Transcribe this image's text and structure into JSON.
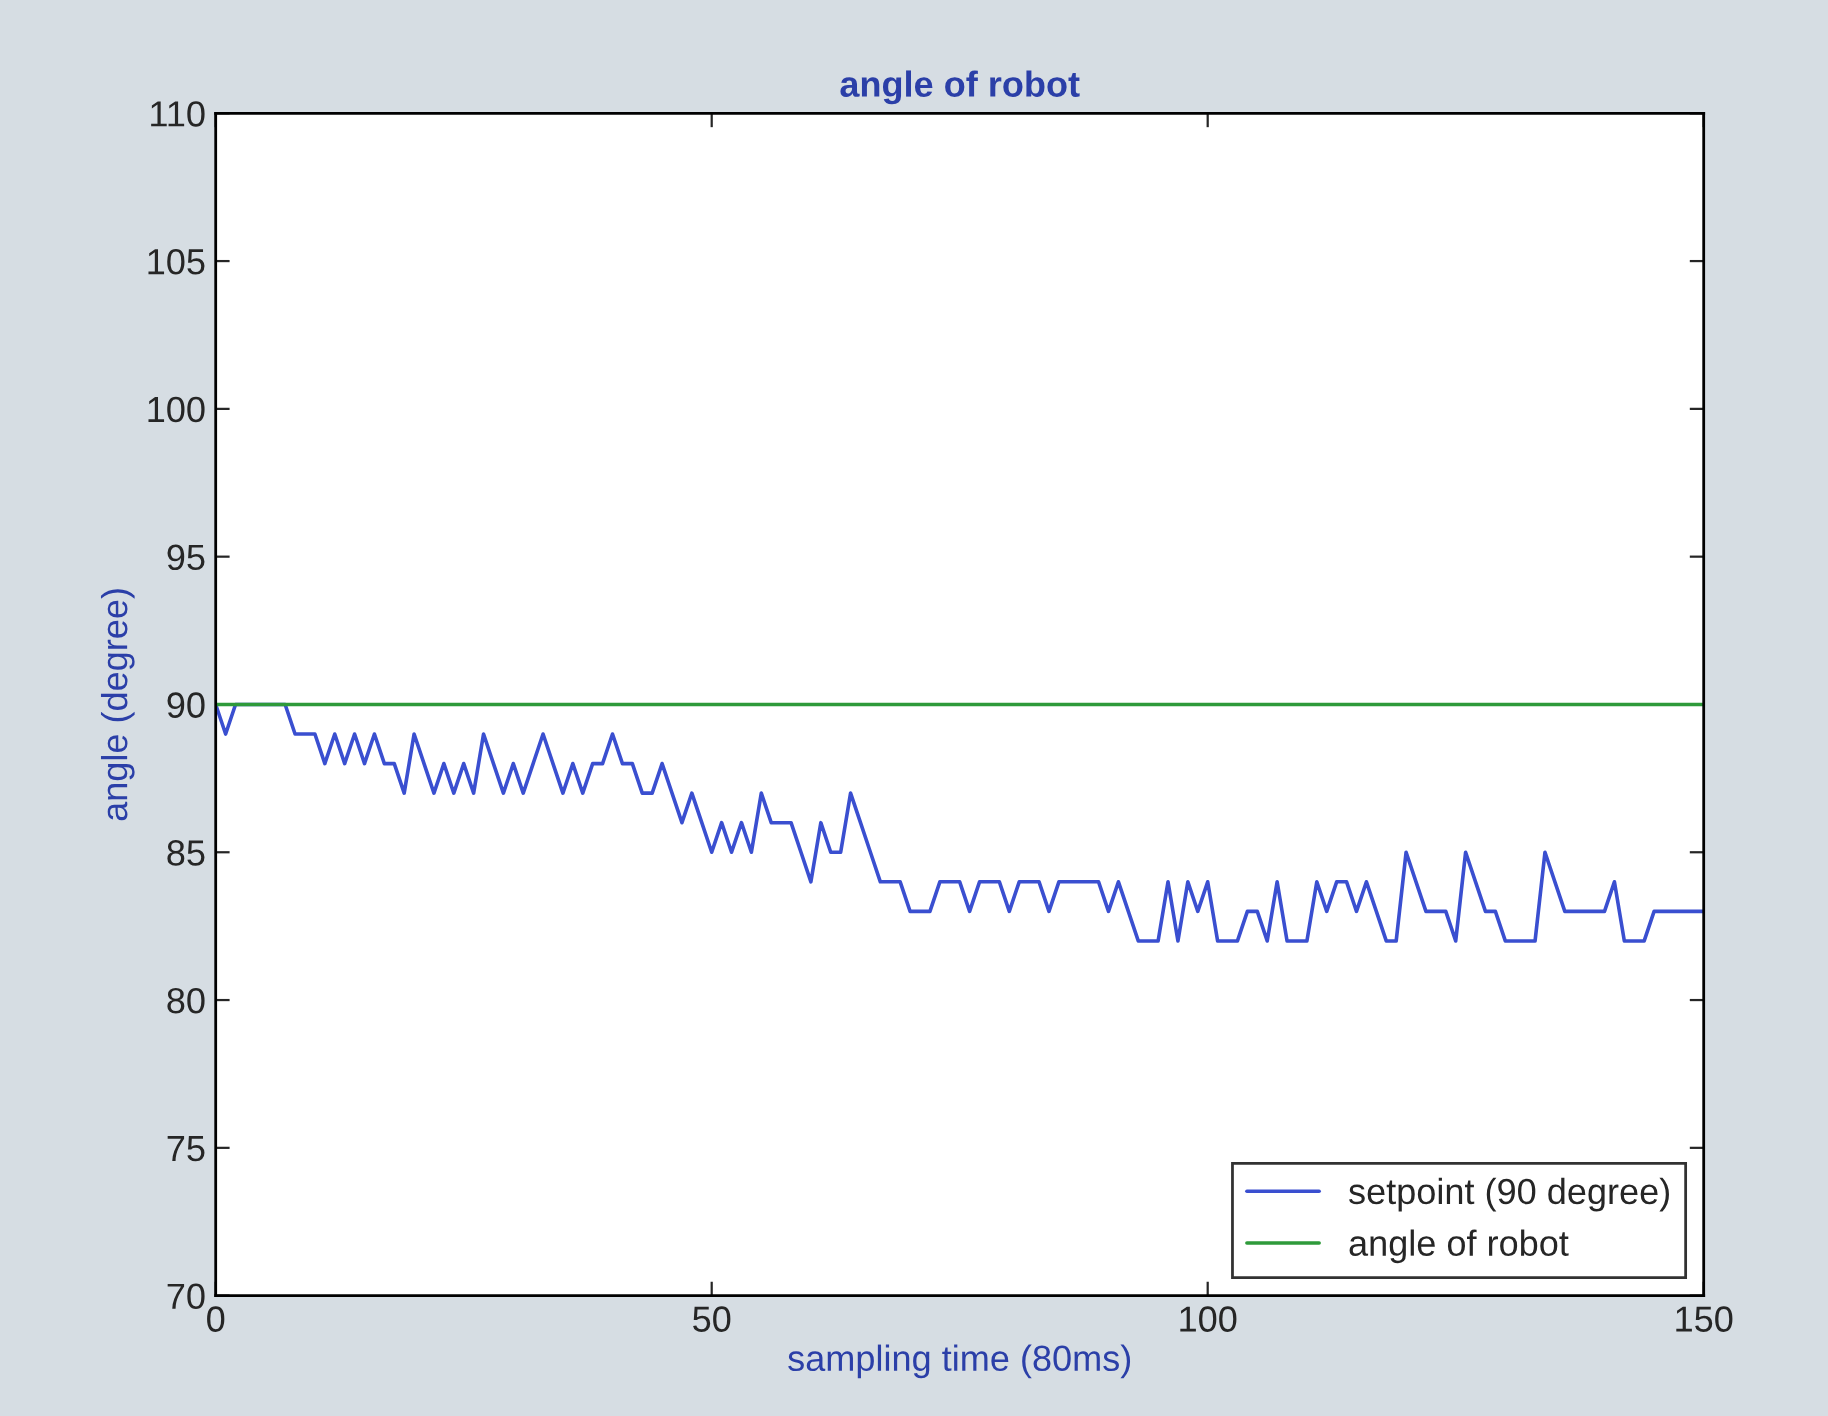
{
  "chart_data": {
    "type": "line",
    "title": "angle of robot",
    "xlabel": "sampling time (80ms)",
    "ylabel": "angle (degree)",
    "xlim": [
      0,
      150
    ],
    "ylim": [
      70,
      110
    ],
    "xticks": [
      0,
      50,
      100,
      150
    ],
    "yticks": [
      70,
      75,
      80,
      85,
      90,
      95,
      100,
      105,
      110
    ],
    "grid": false,
    "legend": "bottom right",
    "line_style": "solid",
    "marker": "none",
    "series": [
      {
        "name": "setpoint (90 degree)",
        "color": "#3a4fd0",
        "x": [
          0,
          1,
          2,
          7,
          8,
          10,
          11,
          12,
          13,
          14,
          15,
          16,
          17,
          18,
          19,
          20,
          21,
          22,
          23,
          24,
          25,
          26,
          27,
          28,
          29,
          30,
          31,
          32,
          33,
          34,
          35,
          36,
          37,
          38,
          39,
          40,
          41,
          42,
          43,
          44,
          45,
          46,
          47,
          48,
          49,
          50,
          51,
          52,
          53,
          54,
          55,
          56,
          57,
          58,
          59,
          60,
          61,
          62,
          63,
          64,
          65,
          66,
          67,
          68,
          69,
          70,
          72,
          73,
          75,
          76,
          77,
          79,
          80,
          81,
          83,
          84,
          85,
          88,
          89,
          90,
          91,
          92,
          93,
          95,
          96,
          97,
          98,
          99,
          100,
          101,
          103,
          104,
          105,
          106,
          107,
          108,
          110,
          111,
          112,
          113,
          114,
          115,
          116,
          117,
          118,
          119,
          120,
          121,
          122,
          124,
          125,
          126,
          127,
          128,
          129,
          130,
          133,
          134,
          135,
          136,
          140,
          141,
          142,
          144,
          145,
          150
        ],
        "values": [
          90,
          89,
          90,
          90,
          89,
          89,
          88,
          89,
          88,
          89,
          88,
          89,
          88,
          88,
          87,
          89,
          88,
          87,
          88,
          87,
          88,
          87,
          89,
          88,
          87,
          88,
          87,
          88,
          89,
          88,
          87,
          88,
          87,
          88,
          88,
          89,
          88,
          88,
          87,
          87,
          88,
          87,
          86,
          87,
          86,
          85,
          86,
          85,
          86,
          85,
          87,
          86,
          86,
          86,
          85,
          84,
          86,
          85,
          85,
          87,
          86,
          85,
          84,
          84,
          84,
          83,
          83,
          84,
          84,
          83,
          84,
          84,
          83,
          84,
          84,
          83,
          84,
          84,
          84,
          83,
          84,
          83,
          82,
          82,
          84,
          82,
          84,
          83,
          84,
          82,
          82,
          83,
          83,
          82,
          84,
          82,
          82,
          84,
          83,
          84,
          84,
          83,
          84,
          83,
          82,
          82,
          85,
          84,
          83,
          83,
          82,
          85,
          84,
          83,
          83,
          82,
          82,
          85,
          84,
          83,
          83,
          84,
          82,
          82,
          83,
          83
        ]
      },
      {
        "name": "angle of robot",
        "color": "#2e9a3a",
        "x": [
          0,
          150
        ],
        "values": [
          90,
          90
        ]
      }
    ]
  }
}
